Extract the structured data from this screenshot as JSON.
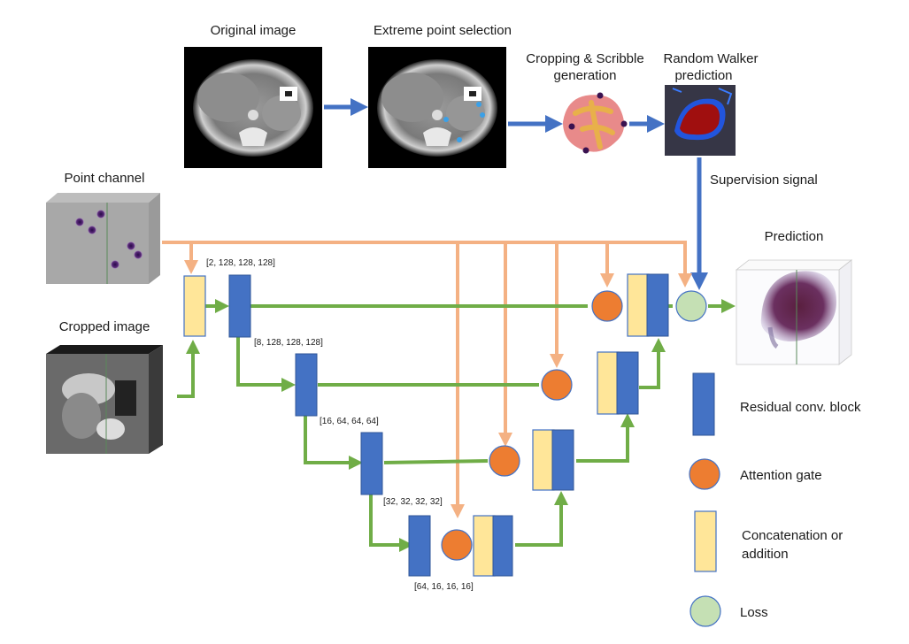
{
  "top_row": {
    "original_image": "Original image",
    "extreme_point_selection": "Extreme point selection",
    "cropping_scribble_line1": "Cropping & Scribble",
    "cropping_scribble_line2": "generation",
    "random_walker_line1": "Random Walker",
    "random_walker_line2": "prediction"
  },
  "inputs": {
    "point_channel": "Point channel",
    "cropped_image": "Cropped image"
  },
  "supervision_signal": "Supervision signal",
  "prediction": "Prediction",
  "dimensions": {
    "level1_in": "[2, 128, 128, 128]",
    "level1_out": "[8, 128, 128, 128]",
    "level2": "[16, 64, 64, 64]",
    "level3": "[32, 32, 32, 32]",
    "level4": "[64, 16, 16, 16]"
  },
  "legend": {
    "residual": "Residual conv. block",
    "attention": "Attention gate",
    "concat_line1": "Concatenation or",
    "concat_line2": "addition",
    "loss": "Loss"
  },
  "colors": {
    "residual_block": "#4472c4",
    "attention_gate": "#ed7d31",
    "concat_block": "#ffe699",
    "loss": "#c5e0b4",
    "skip_arrow": "#f4b183",
    "path_arrow": "#70ad47",
    "supervision_arrow": "#4472c4"
  }
}
